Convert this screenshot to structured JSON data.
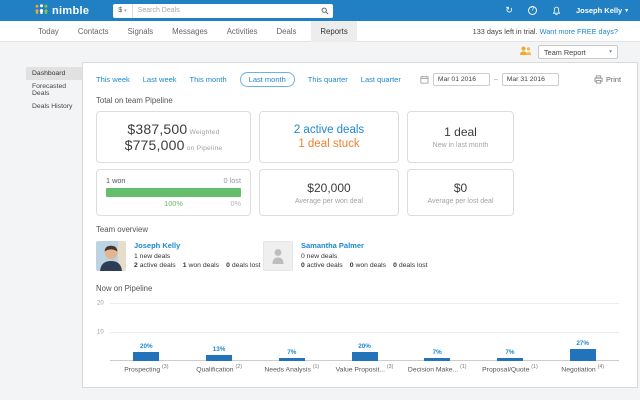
{
  "header": {
    "brand": "nimble",
    "search": {
      "currency": "$",
      "placeholder": "Search Deals"
    },
    "user": "Joseph Kelly"
  },
  "nav": {
    "tabs": [
      {
        "label": "Today"
      },
      {
        "label": "Contacts"
      },
      {
        "label": "Signals"
      },
      {
        "label": "Messages"
      },
      {
        "label": "Activities"
      },
      {
        "label": "Deals"
      },
      {
        "label": "Reports",
        "active": true
      }
    ],
    "trial_text": "133 days left in trial.",
    "trial_link": "Want more FREE days?"
  },
  "report_selector": {
    "value": "Team Report"
  },
  "sidebar": {
    "items": [
      {
        "label": "Dashboard",
        "active": true
      },
      {
        "label": "Forecasted Deals"
      },
      {
        "label": "Deals History"
      }
    ]
  },
  "filters": {
    "ranges": [
      {
        "label": "This week"
      },
      {
        "label": "Last week"
      },
      {
        "label": "This month"
      },
      {
        "label": "Last month",
        "selected": true
      },
      {
        "label": "This quarter"
      },
      {
        "label": "Last quarter"
      }
    ],
    "date_from": "Mar 01 2016",
    "date_sep": "–",
    "date_to": "Mar 31 2016",
    "print_label": "Print"
  },
  "pipeline_summary": {
    "title": "Total on team Pipeline",
    "weighted": {
      "value": "$387,500",
      "label": "Weighted"
    },
    "on_pipeline": {
      "value": "$775,000",
      "label": "on Pipeline"
    },
    "active_deals": "2 active deals",
    "stuck_deals": "1 deal stuck",
    "new_deals": {
      "value": "1 deal",
      "label": "New in last month"
    },
    "won_lost": {
      "won": "1 won",
      "lost": "0 lost",
      "won_pct": "100%",
      "lost_pct": "0%",
      "won_ratio": 1
    },
    "avg_won": {
      "value": "$20,000",
      "label": "Average per won deal"
    },
    "avg_lost": {
      "value": "$0",
      "label": "Average per lost deal"
    }
  },
  "team_overview": {
    "title": "Team overview",
    "members": [
      {
        "name": "Joseph Kelly",
        "new_deals": "1 new deals",
        "stats": [
          {
            "count": "2",
            "label": "active deals"
          },
          {
            "count": "1",
            "label": "won deals"
          },
          {
            "count": "0",
            "label": "deals lost"
          }
        ]
      },
      {
        "name": "Samantha Palmer",
        "new_deals": "0 new deals",
        "stats": [
          {
            "count": "0",
            "label": "active deals"
          },
          {
            "count": "0",
            "label": "won deals"
          },
          {
            "count": "0",
            "label": "deals lost"
          }
        ]
      }
    ]
  },
  "chart_data": {
    "type": "bar",
    "title": "Now on Pipeline",
    "categories": [
      "Prospecting",
      "Qualification",
      "Needs Analysis",
      "Value Proposit...",
      "Decision Make...",
      "Proposal/Quote",
      "Negotiation"
    ],
    "counts": [
      3,
      2,
      1,
      3,
      1,
      1,
      4
    ],
    "values": [
      3,
      2,
      1,
      3,
      1,
      1,
      4
    ],
    "percent_labels": [
      "20%",
      "13%",
      "7%",
      "20%",
      "7%",
      "7%",
      "27%"
    ],
    "yticks": [
      "20",
      "10"
    ],
    "ylim": [
      0,
      20
    ],
    "grid": true,
    "bar_color": "#2273b9",
    "label_color": "#1d87d1"
  },
  "colors": {
    "header_blue": "#2180c4",
    "link_blue": "#1d87d1",
    "stuck_orange": "#f08031",
    "won_green": "#66bd6b",
    "bar_blue": "#2273b9"
  }
}
